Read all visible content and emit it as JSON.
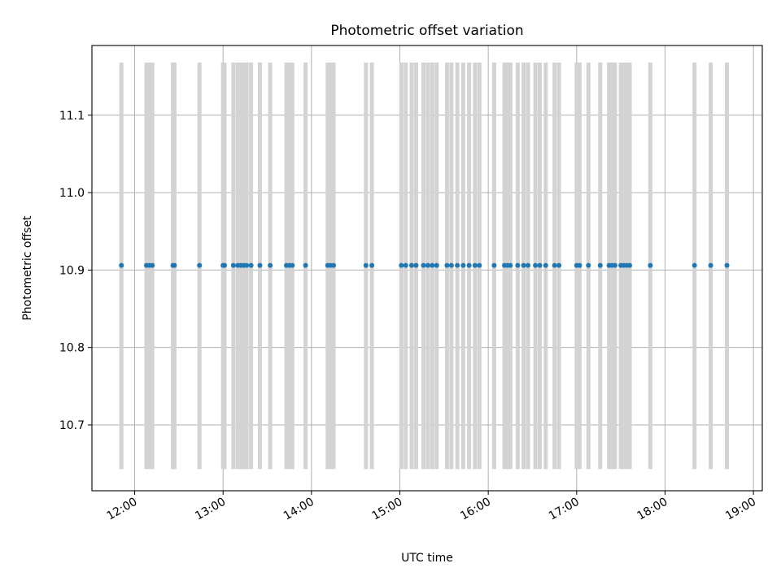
{
  "chart_data": {
    "type": "scatter",
    "title": "Photometric offset variation",
    "xlabel": "UTC time",
    "ylabel": "Photometric offset",
    "xlim": [
      "11:31",
      "19:06"
    ],
    "ylim": [
      10.615,
      11.19
    ],
    "x_ticks": [
      "12:00",
      "13:00",
      "14:00",
      "15:00",
      "16:00",
      "17:00",
      "18:00",
      "19:00"
    ],
    "y_ticks": [
      10.7,
      10.8,
      10.9,
      11.0,
      11.1
    ],
    "grid": true,
    "band_range": [
      10.643,
      11.168
    ],
    "marker_color": "#1f77b4",
    "band_color": "#d3d3d3",
    "points": [
      {
        "t": "11:51",
        "y": 10.906
      },
      {
        "t": "12:08",
        "y": 10.906
      },
      {
        "t": "12:10",
        "y": 10.906
      },
      {
        "t": "12:12",
        "y": 10.906
      },
      {
        "t": "12:26",
        "y": 10.906
      },
      {
        "t": "12:27",
        "y": 10.906
      },
      {
        "t": "12:44",
        "y": 10.906
      },
      {
        "t": "13:00",
        "y": 10.906
      },
      {
        "t": "13:01",
        "y": 10.906
      },
      {
        "t": "13:07",
        "y": 10.906
      },
      {
        "t": "13:10",
        "y": 10.906
      },
      {
        "t": "13:12",
        "y": 10.906
      },
      {
        "t": "13:14",
        "y": 10.906
      },
      {
        "t": "13:16",
        "y": 10.906
      },
      {
        "t": "13:19",
        "y": 10.906
      },
      {
        "t": "13:25",
        "y": 10.906
      },
      {
        "t": "13:32",
        "y": 10.906
      },
      {
        "t": "13:43",
        "y": 10.906
      },
      {
        "t": "13:45",
        "y": 10.906
      },
      {
        "t": "13:47",
        "y": 10.906
      },
      {
        "t": "13:56",
        "y": 10.906
      },
      {
        "t": "14:11",
        "y": 10.906
      },
      {
        "t": "14:13",
        "y": 10.906
      },
      {
        "t": "14:15",
        "y": 10.906
      },
      {
        "t": "14:37",
        "y": 10.906
      },
      {
        "t": "14:41",
        "y": 10.906
      },
      {
        "t": "15:01",
        "y": 10.906
      },
      {
        "t": "15:04",
        "y": 10.906
      },
      {
        "t": "15:08",
        "y": 10.906
      },
      {
        "t": "15:11",
        "y": 10.906
      },
      {
        "t": "15:16",
        "y": 10.906
      },
      {
        "t": "15:19",
        "y": 10.906
      },
      {
        "t": "15:22",
        "y": 10.906
      },
      {
        "t": "15:25",
        "y": 10.906
      },
      {
        "t": "15:32",
        "y": 10.906
      },
      {
        "t": "15:35",
        "y": 10.906
      },
      {
        "t": "15:39",
        "y": 10.906
      },
      {
        "t": "15:43",
        "y": 10.906
      },
      {
        "t": "15:47",
        "y": 10.906
      },
      {
        "t": "15:51",
        "y": 10.906
      },
      {
        "t": "15:54",
        "y": 10.906
      },
      {
        "t": "16:04",
        "y": 10.906
      },
      {
        "t": "16:11",
        "y": 10.906
      },
      {
        "t": "16:13",
        "y": 10.906
      },
      {
        "t": "16:15",
        "y": 10.906
      },
      {
        "t": "16:20",
        "y": 10.906
      },
      {
        "t": "16:24",
        "y": 10.906
      },
      {
        "t": "16:27",
        "y": 10.906
      },
      {
        "t": "16:32",
        "y": 10.906
      },
      {
        "t": "16:35",
        "y": 10.906
      },
      {
        "t": "16:39",
        "y": 10.906
      },
      {
        "t": "16:45",
        "y": 10.906
      },
      {
        "t": "16:48",
        "y": 10.906
      },
      {
        "t": "17:00",
        "y": 10.906
      },
      {
        "t": "17:02",
        "y": 10.906
      },
      {
        "t": "17:08",
        "y": 10.906
      },
      {
        "t": "17:16",
        "y": 10.906
      },
      {
        "t": "17:22",
        "y": 10.906
      },
      {
        "t": "17:24",
        "y": 10.906
      },
      {
        "t": "17:26",
        "y": 10.906
      },
      {
        "t": "17:30",
        "y": 10.906
      },
      {
        "t": "17:32",
        "y": 10.906
      },
      {
        "t": "17:34",
        "y": 10.906
      },
      {
        "t": "17:36",
        "y": 10.906
      },
      {
        "t": "17:50",
        "y": 10.906
      },
      {
        "t": "18:20",
        "y": 10.906
      },
      {
        "t": "18:31",
        "y": 10.906
      },
      {
        "t": "18:42",
        "y": 10.906
      }
    ]
  }
}
